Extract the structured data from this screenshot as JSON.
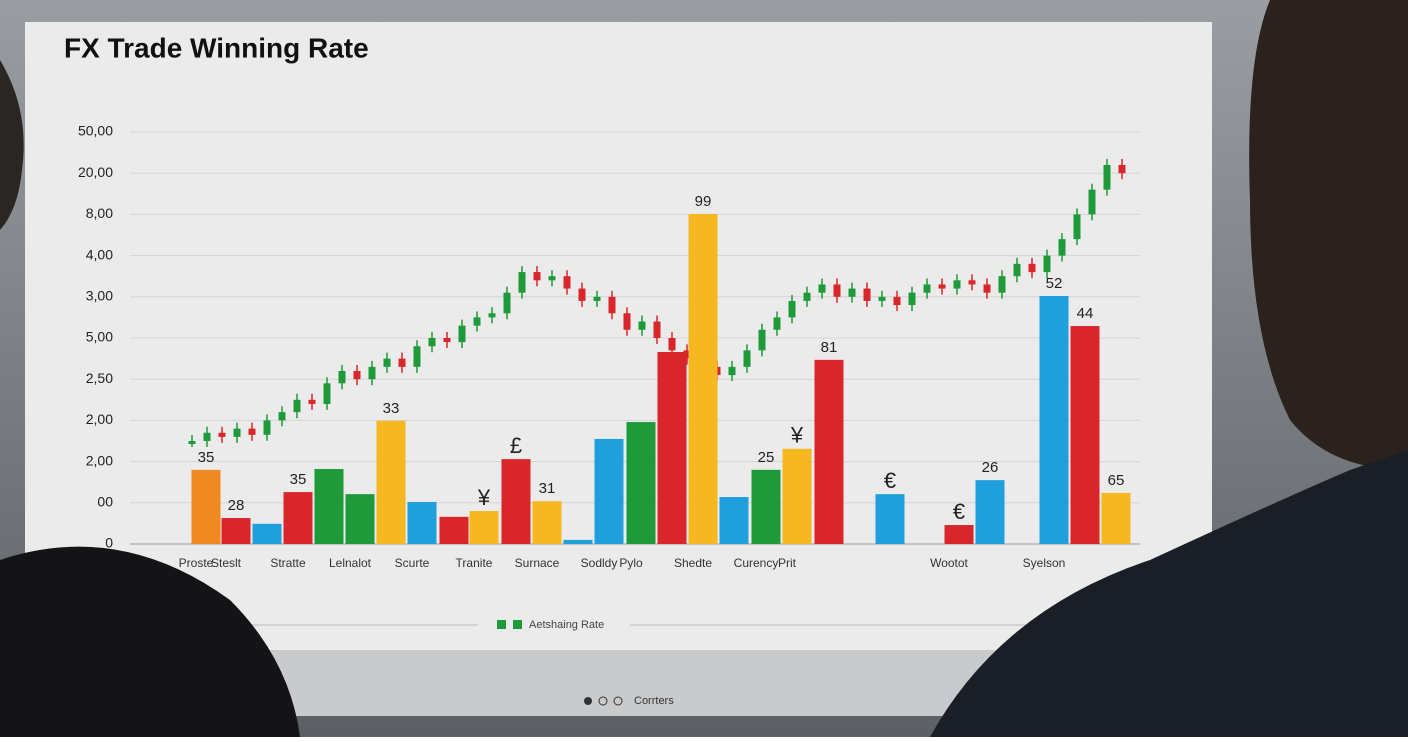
{
  "chart_data": {
    "type": "bar",
    "title": "FX Trade Winning Rate",
    "y_axis_labels": [
      "0",
      "00",
      "2,00",
      "2,00",
      "2,50",
      "5,00",
      "3,00",
      "4,00",
      "8,00",
      "20,00",
      "50,00"
    ],
    "categories": [
      "Proste",
      "Steslt",
      null,
      "Stratte",
      null,
      "Lelnalot",
      null,
      "Scurte",
      null,
      "Tranite",
      null,
      "Surnace",
      null,
      "Sodldy",
      "Pylo",
      null,
      "Shedte",
      null,
      "Curency",
      "Prit",
      null,
      null,
      "Wootot",
      null,
      "Syelson",
      null,
      null
    ],
    "values": [
      1.8,
      0.63,
      0.49,
      1.26,
      1.82,
      1.21,
      2.99,
      1.02,
      0.66,
      0.8,
      2.06,
      1.04,
      0.1,
      2.55,
      2.96,
      4.66,
      8.01,
      1.14,
      1.8,
      2.31,
      4.47,
      1.21,
      0.46,
      1.55,
      6.02,
      5.29,
      1.24
    ],
    "colors": [
      "#ef8a22",
      "#d9262a",
      "#1fa0dc",
      "#d9262a",
      "#1e9a3a",
      "#1e9a3a",
      "#f5b821",
      "#1fa0dc",
      "#d9262a",
      "#f5b821",
      "#d9262a",
      "#f5b821",
      "#1fa0dc",
      "#1fa0dc",
      "#1e9a3a",
      "#d9262a",
      "#f5b821",
      "#1fa0dc",
      "#1e9a3a",
      "#f5b821",
      "#d9262a",
      "#1fa0dc",
      "#d9262a",
      "#1fa0dc",
      "#1fa0dc",
      "#d9262a",
      "#f5b821"
    ],
    "bar_labels": [
      "35",
      "28",
      null,
      "35",
      null,
      null,
      "33",
      null,
      null,
      "¥",
      "£",
      "31",
      null,
      null,
      null,
      null,
      "99",
      null,
      "25",
      "¥",
      "81",
      "€",
      "€",
      "26",
      "52",
      "44",
      "65"
    ],
    "candles": [
      2.5,
      2.7,
      2.6,
      2.8,
      2.65,
      3.0,
      3.2,
      3.5,
      3.4,
      3.9,
      4.2,
      4.0,
      4.3,
      4.5,
      4.3,
      4.8,
      5.0,
      4.9,
      5.3,
      5.5,
      5.6,
      6.1,
      6.6,
      6.4,
      6.5,
      6.2,
      5.9,
      6.0,
      5.6,
      5.2,
      5.4,
      5.0,
      4.7,
      4.5,
      4.3,
      4.1,
      4.3,
      4.7,
      5.2,
      5.5,
      5.9,
      6.1,
      6.3,
      6.0,
      6.2,
      5.9,
      6.0,
      5.8,
      6.1,
      6.3,
      6.2,
      6.4,
      6.3,
      6.1,
      6.5,
      6.8,
      6.6,
      7.0,
      7.4,
      8.0,
      8.6,
      9.2,
      9.0
    ],
    "up_color": "#1e9a3a",
    "down_color": "#d9262a",
    "legend": "Aetshaing Rate",
    "footer": "Corrters"
  }
}
